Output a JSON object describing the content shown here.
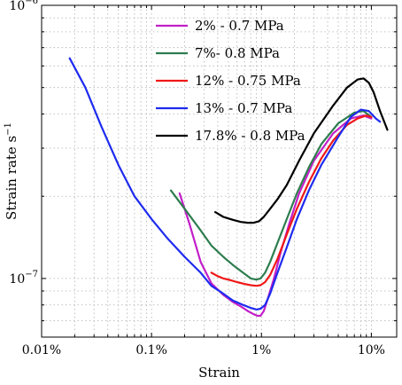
{
  "chart_data": {
    "type": "line",
    "xscale": "log",
    "yscale": "log",
    "xlabel": "Strain",
    "ylabel": "Strain rate s",
    "ylabel_exponent": "−1",
    "xlim": [
      0.0001,
      0.17
    ],
    "ylim": [
      6.1e-08,
      1e-06
    ],
    "x_ticks": [
      {
        "value": 0.0001,
        "label": "0.01%"
      },
      {
        "value": 0.001,
        "label": "0.1%"
      },
      {
        "value": 0.01,
        "label": "1%"
      },
      {
        "value": 0.1,
        "label": "10%"
      }
    ],
    "y_ticks": [
      {
        "value": 1e-07,
        "base": "10",
        "exp": "−7"
      },
      {
        "value": 1e-06,
        "base": "10",
        "exp": "−6"
      }
    ],
    "grid": true,
    "legend_position": "top-center",
    "series": [
      {
        "name": "2% - 0.7 MPa",
        "color": "#c21fc8",
        "x": [
          0.0018,
          0.0022,
          0.0028,
          0.0035,
          0.0045,
          0.0055,
          0.0065,
          0.0075,
          0.0085,
          0.0092,
          0.0098,
          0.0105,
          0.0115,
          0.013,
          0.015,
          0.018,
          0.022,
          0.03,
          0.045,
          0.065,
          0.085,
          0.1
        ],
        "y": [
          2.05e-07,
          1.6e-07,
          1.15e-07,
          9.6e-08,
          8.7e-08,
          8.2e-08,
          7.9e-08,
          7.6e-08,
          7.4e-08,
          7.3e-08,
          7.3e-08,
          7.6e-08,
          8.5e-08,
          1e-07,
          1.25e-07,
          1.6e-07,
          2.05e-07,
          2.7e-07,
          3.4e-07,
          3.85e-07,
          3.95e-07,
          3.85e-07
        ]
      },
      {
        "name": "7%- 0.8 MPa",
        "color": "#2e7d4f",
        "x": [
          0.0015,
          0.002,
          0.0028,
          0.0035,
          0.0045,
          0.0055,
          0.0068,
          0.008,
          0.009,
          0.0098,
          0.0108,
          0.012,
          0.014,
          0.017,
          0.021,
          0.027,
          0.035,
          0.05,
          0.07,
          0.085,
          0.1
        ],
        "y": [
          2.1e-07,
          1.8e-07,
          1.5e-07,
          1.32e-07,
          1.2e-07,
          1.12e-07,
          1.05e-07,
          1e-07,
          9.9e-08,
          1e-07,
          1.05e-07,
          1.15e-07,
          1.35e-07,
          1.65e-07,
          2.05e-07,
          2.55e-07,
          3.1e-07,
          3.7e-07,
          4.05e-07,
          4.1e-07,
          3.9e-07
        ]
      },
      {
        "name": "12% - 0.75 MPa",
        "color": "#f01818",
        "x": [
          0.0035,
          0.004,
          0.0045,
          0.005,
          0.006,
          0.007,
          0.008,
          0.009,
          0.0098,
          0.0108,
          0.012,
          0.014,
          0.017,
          0.021,
          0.027,
          0.035,
          0.045,
          0.06,
          0.075,
          0.09,
          0.1
        ],
        "y": [
          1.05e-07,
          1.02e-07,
          1e-07,
          9.9e-08,
          9.7e-08,
          9.55e-08,
          9.45e-08,
          9.4e-08,
          9.45e-08,
          9.7e-08,
          1.03e-07,
          1.18e-07,
          1.45e-07,
          1.8e-07,
          2.25e-07,
          2.75e-07,
          3.2e-07,
          3.65e-07,
          3.85e-07,
          3.95e-07,
          3.9e-07
        ]
      },
      {
        "name": "13% - 0.7 MPa",
        "color": "#1e2bef",
        "x": [
          0.00018,
          0.00025,
          0.00035,
          0.0005,
          0.0007,
          0.001,
          0.0014,
          0.002,
          0.0028,
          0.0035,
          0.0045,
          0.0055,
          0.0068,
          0.008,
          0.009,
          0.0098,
          0.0108,
          0.012,
          0.014,
          0.017,
          0.021,
          0.027,
          0.035,
          0.05,
          0.065,
          0.08,
          0.095,
          0.11,
          0.12
        ],
        "y": [
          6.4e-07,
          5e-07,
          3.6e-07,
          2.6e-07,
          2e-07,
          1.65e-07,
          1.4e-07,
          1.2e-07,
          1.05e-07,
          9.4e-08,
          8.8e-08,
          8.3e-08,
          8e-08,
          7.8e-08,
          7.7e-08,
          7.75e-08,
          8e-08,
          8.8e-08,
          1.05e-07,
          1.3e-07,
          1.65e-07,
          2.1e-07,
          2.6e-07,
          3.3e-07,
          3.9e-07,
          4.15e-07,
          4.1e-07,
          3.85e-07,
          3.75e-07
        ]
      },
      {
        "name": "17.8% - 0.8 MPa",
        "color": "#000000",
        "x": [
          0.0038,
          0.0045,
          0.0055,
          0.0065,
          0.0075,
          0.0085,
          0.0095,
          0.0105,
          0.012,
          0.014,
          0.017,
          0.022,
          0.03,
          0.045,
          0.06,
          0.075,
          0.085,
          0.095,
          0.105,
          0.12,
          0.14
        ],
        "y": [
          1.75e-07,
          1.68e-07,
          1.64e-07,
          1.61e-07,
          1.6e-07,
          1.6e-07,
          1.62e-07,
          1.68e-07,
          1.8e-07,
          1.95e-07,
          2.2e-07,
          2.7e-07,
          3.4e-07,
          4.3e-07,
          5e-07,
          5.35e-07,
          5.4e-07,
          5.2e-07,
          4.8e-07,
          4.1e-07,
          3.5e-07
        ]
      }
    ]
  }
}
